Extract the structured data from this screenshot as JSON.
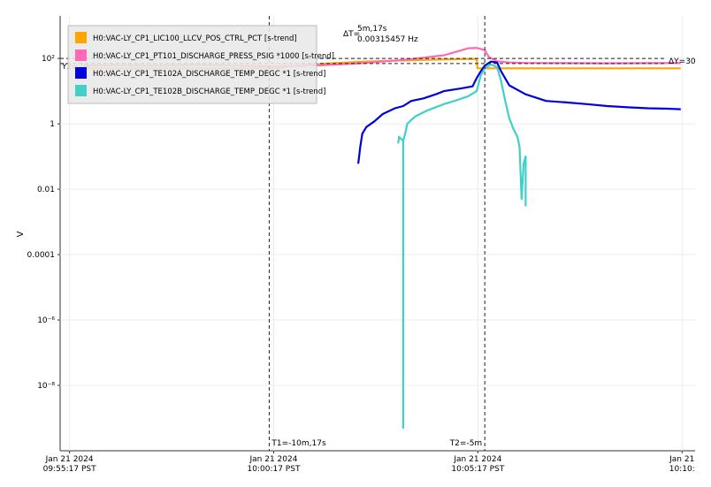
{
  "chart_data": {
    "type": "line",
    "scale_y": "log",
    "ylabel": "V",
    "ylim": [
      1e-10,
      2000
    ],
    "y_ticks": [
      {
        "value": 100,
        "label": "10²"
      },
      {
        "value": 1,
        "label": "1"
      },
      {
        "value": 0.01,
        "label": "0.01"
      },
      {
        "value": 0.0001,
        "label": "0.0001"
      },
      {
        "value": 1e-06,
        "label": "10⁻⁶"
      },
      {
        "value": 1e-08,
        "label": "10⁻⁸"
      }
    ],
    "x_ticks": [
      {
        "t": -15.17,
        "line1": "Jan 21 2024",
        "line2": "09:55:17 PST"
      },
      {
        "t": -10.17,
        "line1": "Jan 21 2024",
        "line2": "10:00:17 PST"
      },
      {
        "t": -5.17,
        "line1": "Jan 21 2024",
        "line2": "10:05:17 PST"
      },
      {
        "t": -0.17,
        "line1": "Jan 21",
        "line2": "10:10:"
      }
    ],
    "xlim": [
      -15.4,
      0.15
    ],
    "grid": true,
    "legend_position": "top-left",
    "series": [
      {
        "name": "H0:VAC-LY_CP1_LIC100_LLCV_POS_CTRL_PCT [s-trend]",
        "color": "#ffa500",
        "points": [
          [
            -14.8,
            50
          ],
          [
            -14.0,
            50
          ],
          [
            -13.0,
            50
          ],
          [
            -12.0,
            50
          ],
          [
            -11.0,
            50
          ],
          [
            -10.4,
            50
          ],
          [
            -10.0,
            50
          ],
          [
            -9.9,
            55
          ],
          [
            -9.5,
            62
          ],
          [
            -9.0,
            68
          ],
          [
            -8.5,
            74
          ],
          [
            -8.0,
            79
          ],
          [
            -7.5,
            83
          ],
          [
            -7.0,
            87
          ],
          [
            -6.5,
            90
          ],
          [
            -6.0,
            93
          ],
          [
            -5.5,
            96
          ],
          [
            -5.2,
            97
          ],
          [
            -5.18,
            50
          ],
          [
            -4.5,
            50
          ],
          [
            -3.0,
            50
          ],
          [
            -1.5,
            50
          ],
          [
            -0.2,
            50
          ]
        ]
      },
      {
        "name": "H0:VAC-LY_CP1_PT101_DISCHARGE_PRESS_PSIG *1000 [s-trend]",
        "color": "#ff69b4",
        "points": [
          [
            -14.8,
            60
          ],
          [
            -14.0,
            62
          ],
          [
            -13.0,
            61
          ],
          [
            -12.0,
            63
          ],
          [
            -11.0,
            60
          ],
          [
            -10.5,
            58
          ],
          [
            -10.2,
            57
          ],
          [
            -9.8,
            58
          ],
          [
            -9.0,
            62
          ],
          [
            -8.0,
            72
          ],
          [
            -7.0,
            90
          ],
          [
            -6.5,
            105
          ],
          [
            -6.0,
            125
          ],
          [
            -5.7,
            160
          ],
          [
            -5.4,
            205
          ],
          [
            -5.2,
            210
          ],
          [
            -5.0,
            180
          ],
          [
            -4.9,
            110
          ],
          [
            -4.7,
            82
          ],
          [
            -4.4,
            75
          ],
          [
            -4.0,
            73
          ],
          [
            -3.0,
            72
          ],
          [
            -2.0,
            71
          ],
          [
            -1.0,
            72
          ],
          [
            -0.2,
            72
          ]
        ]
      },
      {
        "name": "H0:VAC-LY_CP1_TE102A_DISCHARGE_TEMP_DEGC *1 [s-trend]",
        "color": "#0000dd",
        "points": [
          [
            -8.1,
            0.06
          ],
          [
            -8.05,
            0.2
          ],
          [
            -8.0,
            0.5
          ],
          [
            -7.9,
            0.8
          ],
          [
            -7.7,
            1.2
          ],
          [
            -7.5,
            2
          ],
          [
            -7.2,
            3
          ],
          [
            -7.0,
            3.5
          ],
          [
            -6.8,
            5
          ],
          [
            -6.5,
            6
          ],
          [
            -6.2,
            8
          ],
          [
            -6.0,
            10
          ],
          [
            -5.6,
            12
          ],
          [
            -5.3,
            14
          ],
          [
            -5.2,
            25
          ],
          [
            -5.1,
            40
          ],
          [
            -5.0,
            60
          ],
          [
            -4.85,
            80
          ],
          [
            -4.7,
            75
          ],
          [
            -4.6,
            40
          ],
          [
            -4.4,
            15
          ],
          [
            -4.0,
            8
          ],
          [
            -3.5,
            5
          ],
          [
            -3.0,
            4.5
          ],
          [
            -2.5,
            4
          ],
          [
            -2.0,
            3.5
          ],
          [
            -1.5,
            3.2
          ],
          [
            -1.0,
            3
          ],
          [
            -0.5,
            2.9
          ],
          [
            -0.2,
            2.8
          ]
        ]
      },
      {
        "name": "H0:VAC-LY_CP1_TE102B_DISCHARGE_TEMP_DEGC *1 [s-trend]",
        "color": "#40d0c8",
        "points": [
          [
            -7.12,
            0.25
          ],
          [
            -7.1,
            0.4
          ],
          [
            -7.0,
            0.3
          ],
          [
            -7.0,
            5e-10
          ],
          [
            -7.0,
            0.3
          ],
          [
            -6.95,
            0.5
          ],
          [
            -6.9,
            1.0
          ],
          [
            -6.7,
            1.7
          ],
          [
            -6.4,
            2.6
          ],
          [
            -6.0,
            4
          ],
          [
            -5.7,
            5.2
          ],
          [
            -5.4,
            7
          ],
          [
            -5.2,
            10
          ],
          [
            -5.1,
            30
          ],
          [
            -5.0,
            50
          ],
          [
            -4.85,
            65
          ],
          [
            -4.7,
            55
          ],
          [
            -4.6,
            20
          ],
          [
            -4.5,
            5
          ],
          [
            -4.4,
            1.5
          ],
          [
            -4.3,
            0.7
          ],
          [
            -4.2,
            0.4
          ],
          [
            -4.15,
            0.2
          ],
          [
            -4.1,
            0.005
          ],
          [
            -4.05,
            0.06
          ],
          [
            -4.0,
            0.1
          ],
          [
            -4.0,
            0.003
          ]
        ]
      }
    ],
    "cursors": {
      "t1_label": "T1=-10m,17s",
      "t2_label": "T2=-5m",
      "t1": -10.28,
      "t2": -5.0,
      "y1": 100,
      "y2": 70,
      "y2_label": "Y2=70",
      "dy_label": "ΔY=30",
      "dt_prefix": "ΔT=",
      "dt_label": "5m,17s",
      "freq_label": "0.00315457 Hz"
    }
  }
}
